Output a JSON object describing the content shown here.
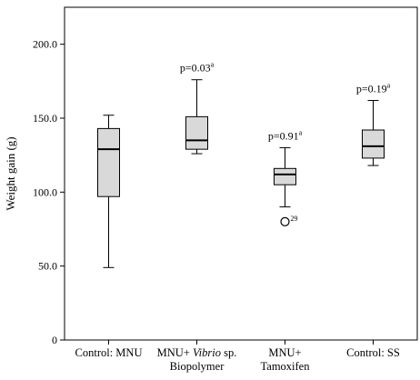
{
  "chart_data": {
    "type": "boxplot",
    "ylabel": "Weight gain (g)",
    "ylim": [
      0,
      225
    ],
    "yticks": [
      0,
      50.0,
      100.0,
      150.0,
      200.0
    ],
    "ytick_labels": [
      "0",
      "50.0",
      "100.0",
      "150.0",
      "200.0"
    ],
    "grid": false,
    "box_fill": "#d9d9d9",
    "categories": [
      {
        "lines": [
          "Control: MNU"
        ],
        "italic_word": ""
      },
      {
        "lines": [
          "MNU+ Vibrio sp.",
          "Biopolymer"
        ],
        "italic_word": "Vibrio"
      },
      {
        "lines": [
          "MNU+",
          "Tamoxifen"
        ],
        "italic_word": ""
      },
      {
        "lines": [
          "Control: SS"
        ],
        "italic_word": ""
      }
    ],
    "boxes": [
      {
        "whisker_low": 49,
        "q1": 97,
        "median": 129,
        "q3": 143,
        "whisker_high": 152,
        "annotation": "",
        "annotation_sup": "",
        "outliers": []
      },
      {
        "whisker_low": 126,
        "q1": 129,
        "median": 135,
        "q3": 151,
        "whisker_high": 176,
        "annotation": "p=0.03",
        "annotation_sup": "a",
        "outliers": []
      },
      {
        "whisker_low": 90,
        "q1": 105,
        "median": 112,
        "q3": 116,
        "whisker_high": 130,
        "annotation": "p=0.91",
        "annotation_sup": "a",
        "outliers": [
          {
            "value": 80,
            "label": "29"
          }
        ]
      },
      {
        "whisker_low": 118,
        "q1": 123,
        "median": 131,
        "q3": 142,
        "whisker_high": 162,
        "annotation": "p=0.19",
        "annotation_sup": "a",
        "outliers": []
      }
    ]
  }
}
